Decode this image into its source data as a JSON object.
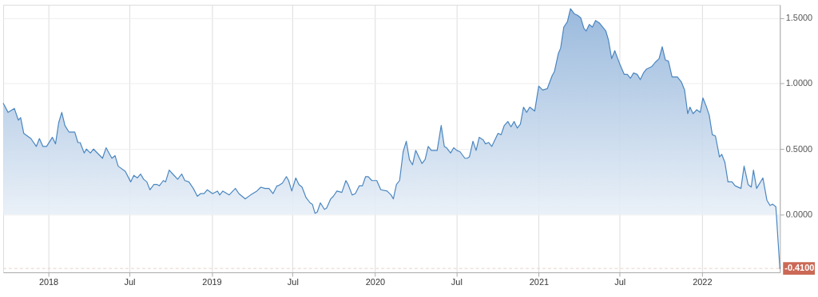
{
  "chart_data": {
    "type": "area",
    "x": [
      "2017-09-22",
      "2017-10-03",
      "2017-10-17",
      "2017-10-26",
      "2017-10-31",
      "2017-11-07",
      "2017-11-23",
      "2017-12-05",
      "2017-12-12",
      "2017-12-20",
      "2017-12-28",
      "2018-01-10",
      "2018-01-17",
      "2018-01-24",
      "2018-01-31",
      "2018-02-07",
      "2018-02-16",
      "2018-03-01",
      "2018-03-08",
      "2018-03-13",
      "2018-03-22",
      "2018-03-27",
      "2018-04-05",
      "2018-04-12",
      "2018-05-02",
      "2018-05-10",
      "2018-05-18",
      "2018-05-23",
      "2018-05-30",
      "2018-06-06",
      "2018-06-22",
      "2018-07-04",
      "2018-07-11",
      "2018-07-19",
      "2018-07-26",
      "2018-08-02",
      "2018-08-09",
      "2018-08-16",
      "2018-08-25",
      "2018-09-01",
      "2018-09-06",
      "2018-09-15",
      "2018-09-20",
      "2018-09-28",
      "2018-10-06",
      "2018-10-17",
      "2018-10-26",
      "2018-11-02",
      "2018-11-11",
      "2018-11-21",
      "2018-11-30",
      "2018-12-07",
      "2018-12-15",
      "2018-12-22",
      "2019-01-03",
      "2019-01-14",
      "2019-01-19",
      "2019-01-26",
      "2019-02-09",
      "2019-02-23",
      "2019-03-03",
      "2019-03-17",
      "2019-03-29",
      "2019-04-12",
      "2019-04-21",
      "2019-04-30",
      "2019-05-09",
      "2019-05-18",
      "2019-05-27",
      "2019-05-30",
      "2019-06-08",
      "2019-06-17",
      "2019-06-22",
      "2019-06-29",
      "2019-07-08",
      "2019-07-15",
      "2019-07-22",
      "2019-07-31",
      "2019-08-09",
      "2019-08-14",
      "2019-08-20",
      "2019-08-25",
      "2019-09-01",
      "2019-09-10",
      "2019-09-15",
      "2019-09-24",
      "2019-09-30",
      "2019-10-08",
      "2019-10-19",
      "2019-10-28",
      "2019-11-02",
      "2019-11-11",
      "2019-11-18",
      "2019-11-27",
      "2019-12-04",
      "2019-12-11",
      "2019-12-17",
      "2019-12-25",
      "2020-01-05",
      "2020-01-14",
      "2020-01-28",
      "2020-02-06",
      "2020-02-11",
      "2020-02-18",
      "2020-02-25",
      "2020-03-04",
      "2020-03-11",
      "2020-03-18",
      "2020-03-25",
      "2020-04-01",
      "2020-04-08",
      "2020-04-15",
      "2020-04-22",
      "2020-04-29",
      "2020-05-06",
      "2020-05-19",
      "2020-05-28",
      "2020-06-04",
      "2020-06-09",
      "2020-06-18",
      "2020-06-25",
      "2020-07-02",
      "2020-07-09",
      "2020-07-20",
      "2020-07-25",
      "2020-07-30",
      "2020-08-07",
      "2020-08-14",
      "2020-08-21",
      "2020-08-30",
      "2020-09-04",
      "2020-09-11",
      "2020-09-18",
      "2020-10-02",
      "2020-10-09",
      "2020-10-16",
      "2020-10-24",
      "2020-10-31",
      "2020-11-07",
      "2020-11-14",
      "2020-11-21",
      "2020-11-28",
      "2020-12-05",
      "2020-12-12",
      "2020-12-23",
      "2021-01-01",
      "2021-01-10",
      "2021-01-20",
      "2021-01-31",
      "2021-02-05",
      "2021-02-14",
      "2021-02-19",
      "2021-02-26",
      "2021-03-06",
      "2021-03-13",
      "2021-03-22",
      "2021-03-29",
      "2021-04-05",
      "2021-04-12",
      "2021-04-17",
      "2021-04-24",
      "2021-05-01",
      "2021-05-08",
      "2021-05-17",
      "2021-05-31",
      "2021-06-06",
      "2021-06-13",
      "2021-06-20",
      "2021-07-01",
      "2021-07-11",
      "2021-07-18",
      "2021-07-25",
      "2021-08-01",
      "2021-08-09",
      "2021-08-16",
      "2021-08-23",
      "2021-08-30",
      "2021-09-11",
      "2021-09-18",
      "2021-09-27",
      "2021-10-04",
      "2021-10-11",
      "2021-10-18",
      "2021-10-26",
      "2021-11-07",
      "2021-11-16",
      "2021-11-23",
      "2021-11-30",
      "2021-12-05",
      "2021-12-12",
      "2021-12-20",
      "2021-12-28",
      "2022-01-03",
      "2022-01-10",
      "2022-01-17",
      "2022-01-24",
      "2022-01-31",
      "2022-02-09",
      "2022-02-14",
      "2022-02-21",
      "2022-02-28",
      "2022-03-09",
      "2022-03-16",
      "2022-03-29",
      "2022-04-05",
      "2022-04-14",
      "2022-04-21",
      "2022-04-26",
      "2022-05-03",
      "2022-05-17",
      "2022-05-26",
      "2022-06-02",
      "2022-06-08",
      "2022-06-15",
      "2022-06-24"
    ],
    "series": [
      {
        "color": "#4a86c0",
        "values": [
          0.85,
          0.78,
          0.81,
          0.72,
          0.74,
          0.62,
          0.58,
          0.52,
          0.58,
          0.52,
          0.52,
          0.59,
          0.54,
          0.7,
          0.78,
          0.68,
          0.63,
          0.63,
          0.55,
          0.55,
          0.47,
          0.5,
          0.47,
          0.5,
          0.43,
          0.51,
          0.46,
          0.43,
          0.45,
          0.37,
          0.33,
          0.25,
          0.3,
          0.28,
          0.31,
          0.27,
          0.25,
          0.19,
          0.23,
          0.23,
          0.22,
          0.26,
          0.25,
          0.34,
          0.31,
          0.27,
          0.31,
          0.26,
          0.25,
          0.2,
          0.14,
          0.16,
          0.16,
          0.19,
          0.16,
          0.18,
          0.15,
          0.18,
          0.15,
          0.2,
          0.16,
          0.12,
          0.15,
          0.18,
          0.21,
          0.2,
          0.2,
          0.16,
          0.22,
          0.22,
          0.24,
          0.29,
          0.26,
          0.18,
          0.28,
          0.23,
          0.21,
          0.13,
          0.09,
          0.08,
          0.01,
          0.02,
          0.09,
          0.04,
          0.05,
          0.12,
          0.14,
          0.18,
          0.17,
          0.26,
          0.23,
          0.15,
          0.16,
          0.22,
          0.22,
          0.29,
          0.29,
          0.26,
          0.26,
          0.19,
          0.18,
          0.15,
          0.12,
          0.23,
          0.26,
          0.48,
          0.56,
          0.42,
          0.38,
          0.49,
          0.44,
          0.39,
          0.42,
          0.52,
          0.49,
          0.49,
          0.68,
          0.52,
          0.51,
          0.47,
          0.51,
          0.49,
          0.48,
          0.43,
          0.43,
          0.44,
          0.56,
          0.49,
          0.59,
          0.57,
          0.54,
          0.55,
          0.52,
          0.62,
          0.61,
          0.68,
          0.71,
          0.67,
          0.71,
          0.66,
          0.69,
          0.82,
          0.78,
          0.82,
          0.79,
          0.98,
          0.95,
          0.96,
          1.06,
          1.09,
          1.23,
          1.27,
          1.43,
          1.47,
          1.57,
          1.53,
          1.52,
          1.5,
          1.42,
          1.4,
          1.45,
          1.43,
          1.48,
          1.46,
          1.4,
          1.33,
          1.19,
          1.25,
          1.15,
          1.07,
          1.07,
          1.04,
          1.08,
          1.07,
          1.03,
          1.08,
          1.11,
          1.13,
          1.16,
          1.19,
          1.28,
          1.18,
          1.17,
          1.05,
          1.05,
          1.01,
          0.95,
          0.77,
          0.82,
          0.77,
          0.8,
          0.78,
          0.89,
          0.83,
          0.76,
          0.61,
          0.6,
          0.44,
          0.46,
          0.4,
          0.25,
          0.25,
          0.22,
          0.2,
          0.37,
          0.23,
          0.21,
          0.34,
          0.2,
          0.28,
          0.11,
          0.07,
          0.08,
          0.06,
          -0.41
        ]
      }
    ],
    "xlim": [
      "2017-09-22",
      "2022-06-24"
    ],
    "xticks": [
      {
        "value": "2018-01-01",
        "label": "2018"
      },
      {
        "value": "2018-07-01",
        "label": "Jul"
      },
      {
        "value": "2019-01-01",
        "label": "2019"
      },
      {
        "value": "2019-07-01",
        "label": "Jul"
      },
      {
        "value": "2020-01-01",
        "label": "2020"
      },
      {
        "value": "2020-07-01",
        "label": "Jul"
      },
      {
        "value": "2021-01-01",
        "label": "2021"
      },
      {
        "value": "2021-07-01",
        "label": "Jul"
      },
      {
        "value": "2022-01-01",
        "label": "2022"
      }
    ],
    "ylim": [
      -0.44,
      1.6
    ],
    "yticks": [
      {
        "value": 0,
        "label": "0.0000"
      },
      {
        "value": 0.5,
        "label": "0.5000"
      },
      {
        "value": 1,
        "label": "1.0000"
      },
      {
        "value": 1.5,
        "label": "1.5000"
      }
    ],
    "grid": true,
    "ref_lines": [
      {
        "axis": "y",
        "value": -0.41,
        "label": "-0.4100",
        "color": "#e8d2c8",
        "line_style": "dashed"
      }
    ]
  }
}
